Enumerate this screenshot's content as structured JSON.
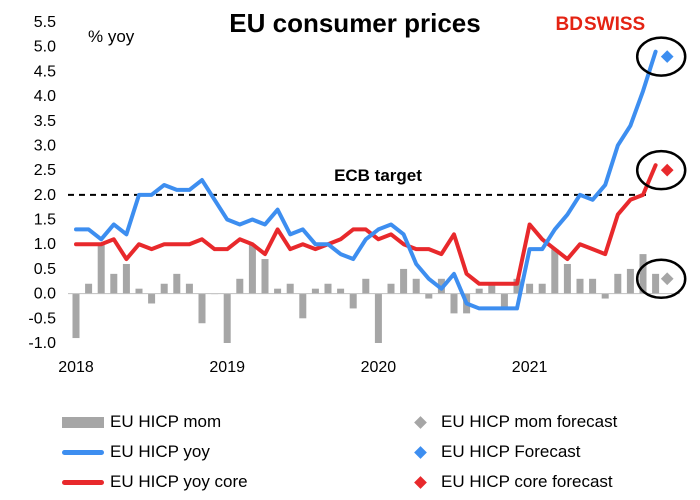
{
  "colors": {
    "mom": "#a6a6a6",
    "yoy": "#3d8ef0",
    "core": "#e8292c",
    "mom_forecast": "#a6a6a6",
    "yoy_forecast": "#3d8ef0",
    "core_forecast": "#e8292c",
    "logo": "#e42313"
  },
  "logo": {
    "bd": "BD",
    "swiss": "SWISS"
  },
  "chart_data": {
    "type": "bar+line",
    "title": "EU consumer prices",
    "ylabel": "% yoy",
    "ylim": [
      -1.0,
      5.5
    ],
    "yticks": [
      "5.5",
      "5.0",
      "4.5",
      "4.0",
      "3.5",
      "3.0",
      "2.5",
      "2.0",
      "1.5",
      "1.0",
      "0.5",
      "0.0",
      "-0.5",
      "-1.0"
    ],
    "ytick_values": [
      5.5,
      5.0,
      4.5,
      4.0,
      3.5,
      3.0,
      2.5,
      2.0,
      1.5,
      1.0,
      0.5,
      0.0,
      -0.5,
      -1.0
    ],
    "xticks": [
      "2018",
      "2019",
      "2020",
      "2021"
    ],
    "x_start": "2018-01",
    "reference_line": {
      "value": 2.0,
      "label": "ECB target",
      "style": "dashed"
    },
    "series": [
      {
        "name": "EU HICP mom",
        "kind": "bar",
        "color": "#a6a6a6",
        "values": [
          -0.9,
          0.2,
          1.0,
          0.4,
          0.6,
          0.1,
          -0.2,
          0.2,
          0.4,
          0.2,
          -0.6,
          0.0,
          -1.0,
          0.3,
          1.0,
          0.7,
          0.1,
          0.2,
          -0.5,
          0.1,
          0.2,
          0.1,
          -0.3,
          0.3,
          -1.0,
          0.2,
          0.5,
          0.3,
          -0.1,
          0.3,
          -0.4,
          -0.4,
          0.1,
          0.2,
          -0.3,
          0.3,
          0.2,
          0.2,
          0.9,
          0.6,
          0.3,
          0.3,
          -0.1,
          0.4,
          0.5,
          0.8,
          0.4
        ]
      },
      {
        "name": "EU HICP yoy",
        "kind": "line",
        "color": "#3d8ef0",
        "values": [
          1.3,
          1.3,
          1.1,
          1.4,
          1.2,
          2.0,
          2.0,
          2.2,
          2.1,
          2.1,
          2.3,
          1.9,
          1.5,
          1.4,
          1.5,
          1.4,
          1.7,
          1.2,
          1.3,
          1.0,
          1.0,
          0.8,
          0.7,
          1.1,
          1.3,
          1.4,
          1.2,
          0.6,
          0.3,
          0.1,
          0.4,
          -0.2,
          -0.3,
          -0.3,
          -0.3,
          -0.3,
          0.9,
          0.9,
          1.3,
          1.6,
          2.0,
          1.9,
          2.2,
          3.0,
          3.4,
          4.1,
          4.9
        ]
      },
      {
        "name": "EU HICP yoy core",
        "kind": "line",
        "color": "#e8292c",
        "values": [
          1.0,
          1.0,
          1.0,
          1.1,
          0.7,
          1.0,
          0.9,
          1.0,
          1.0,
          1.0,
          1.1,
          0.9,
          0.9,
          1.1,
          1.0,
          0.8,
          1.3,
          0.9,
          1.0,
          0.9,
          1.0,
          1.1,
          1.3,
          1.3,
          1.1,
          1.2,
          1.0,
          0.9,
          0.9,
          0.8,
          1.2,
          0.4,
          0.2,
          0.2,
          0.2,
          0.2,
          1.4,
          1.1,
          0.9,
          0.7,
          1.0,
          0.9,
          0.8,
          1.6,
          1.9,
          2.0,
          2.6
        ]
      },
      {
        "name": "EU HICP mom forecast",
        "kind": "marker",
        "color": "#a6a6a6",
        "index": 47,
        "value": 0.3
      },
      {
        "name": "EU HICP Forecast",
        "kind": "marker",
        "color": "#3d8ef0",
        "index": 47,
        "value": 4.8
      },
      {
        "name": "EU HICP core forecast",
        "kind": "marker",
        "color": "#e8292c",
        "index": 47,
        "value": 2.5
      }
    ],
    "legend": [
      {
        "label": "EU HICP mom",
        "kind": "bar",
        "color": "#a6a6a6"
      },
      {
        "label": "EU HICP mom forecast",
        "kind": "diamond",
        "color": "#a6a6a6"
      },
      {
        "label": "EU HICP yoy",
        "kind": "line",
        "color": "#3d8ef0"
      },
      {
        "label": "EU HICP Forecast",
        "kind": "diamond",
        "color": "#3d8ef0"
      },
      {
        "label": "EU HICP yoy core",
        "kind": "line",
        "color": "#e8292c"
      },
      {
        "label": "EU HICP core forecast",
        "kind": "diamond",
        "color": "#e8292c"
      }
    ],
    "legend_position": "bottom",
    "grid": false
  }
}
